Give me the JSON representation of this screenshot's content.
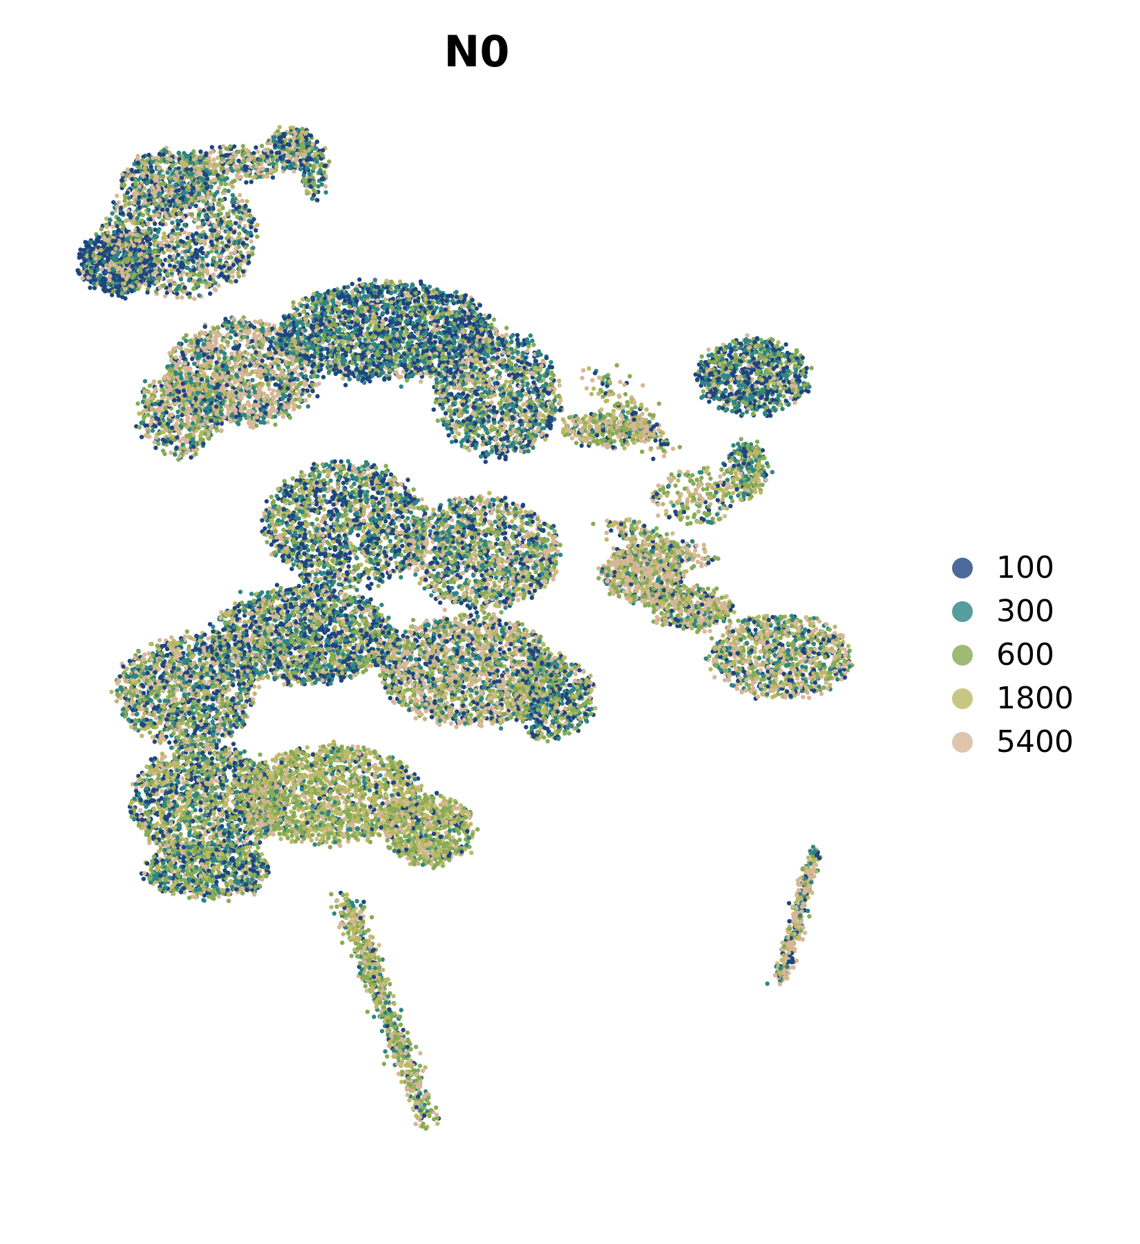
{
  "chart_data": {
    "type": "scatter",
    "title": "N0",
    "xlabel": "",
    "ylabel": "",
    "axes_visible": false,
    "grid": false,
    "legend_placement": "right",
    "series": [
      {
        "name": "100",
        "color": "#1f4580"
      },
      {
        "name": "300",
        "color": "#2e8585"
      },
      {
        "name": "600",
        "color": "#86ab55"
      },
      {
        "name": "1800",
        "color": "#bcb865"
      },
      {
        "name": "5400",
        "color": "#d6b798"
      }
    ]
  }
}
